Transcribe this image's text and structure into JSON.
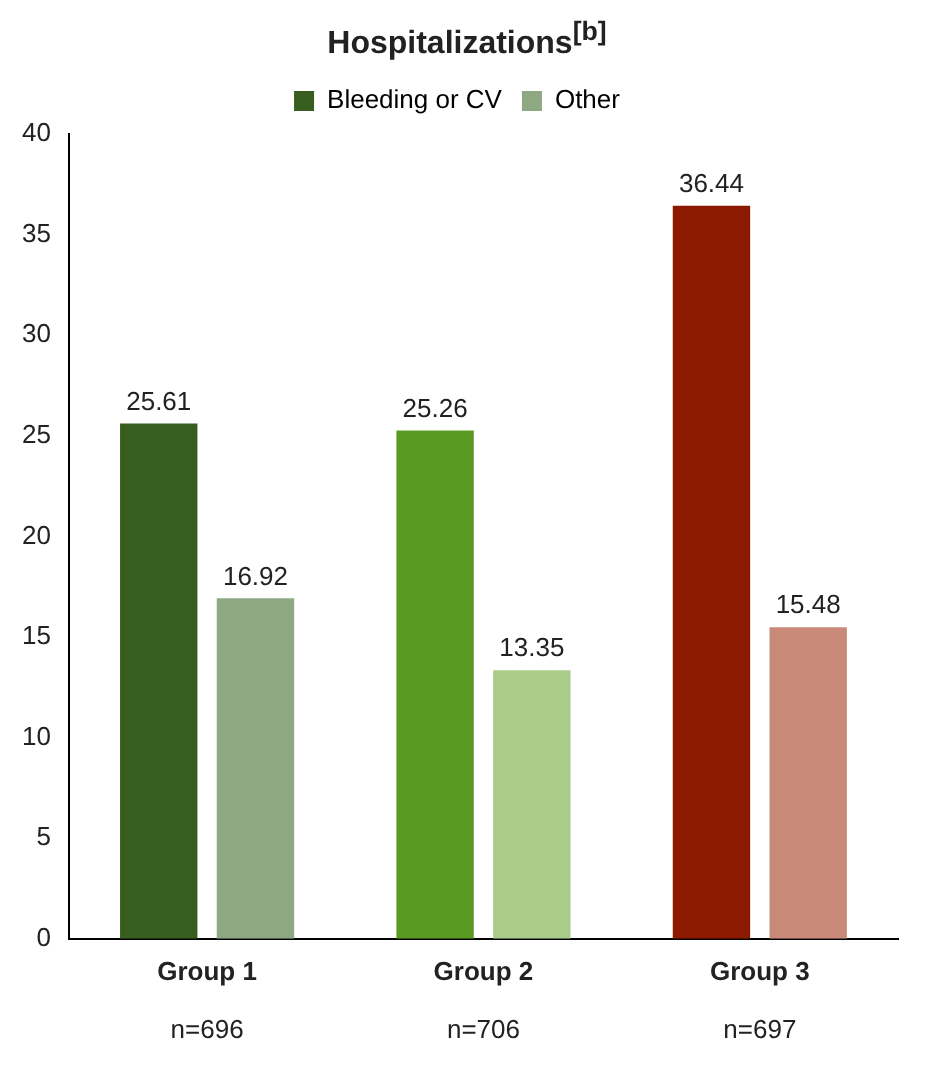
{
  "chart_data": {
    "type": "bar",
    "title": "Hospitalizations$^{[b]}$",
    "categories": [
      "Group 1",
      "Group 2",
      "Group 3"
    ],
    "series": [
      {
        "name": "Bleeding or CV",
        "colors": [
          "#375e1f",
          "#5a9a22",
          "#8b1a00"
        ],
        "values": [
          25.61,
          25.26,
          36.44
        ]
      },
      {
        "name": "Other",
        "colors": [
          "#8fa884",
          "#a9cc8a",
          "#c98a7a"
        ],
        "values": [
          16.92,
          13.35,
          15.48
        ]
      }
    ],
    "ylim": [
      0,
      40
    ],
    "yticks": [
      0,
      5,
      10,
      15,
      20,
      25,
      30,
      35,
      40
    ],
    "grid": false,
    "legend": "top",
    "data_labels": true,
    "annotations": [
      "n=696",
      "n=706",
      "n=697"
    ]
  }
}
